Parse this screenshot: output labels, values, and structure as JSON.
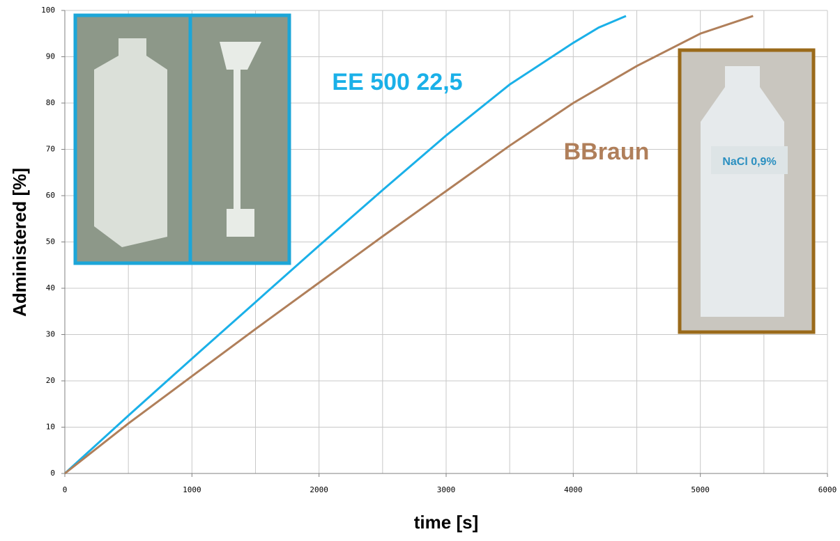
{
  "chart_data": {
    "type": "line",
    "xlabel": "time [s]",
    "ylabel": "Administered [%]",
    "xlim": [
      0,
      6000
    ],
    "xticks": [
      0,
      1000,
      2000,
      3000,
      4000,
      5000,
      6000
    ],
    "ylim": [
      0,
      100
    ],
    "yticks": [
      0,
      10,
      20,
      30,
      40,
      50,
      60,
      70,
      80,
      90,
      100
    ],
    "grid": true,
    "series": [
      {
        "name": "EE 500 22,5",
        "color": "#1ab0e8",
        "x": [
          0,
          500,
          1000,
          1500,
          2000,
          2500,
          3000,
          3500,
          4000,
          4200,
          4415
        ],
        "values": [
          0,
          12.5,
          24.8,
          37,
          49.2,
          61.2,
          73,
          84,
          93,
          96.3,
          98.8
        ]
      },
      {
        "name": "BBraun",
        "color": "#b07f5a",
        "x": [
          0,
          500,
          1000,
          1500,
          2000,
          2500,
          3000,
          3500,
          4000,
          4500,
          5000,
          5415
        ],
        "values": [
          0,
          10.8,
          21,
          31.2,
          41.2,
          51.2,
          61,
          70.8,
          80,
          88,
          95,
          98.8
        ]
      }
    ],
    "photo_label": "NaCl 0,9%"
  }
}
